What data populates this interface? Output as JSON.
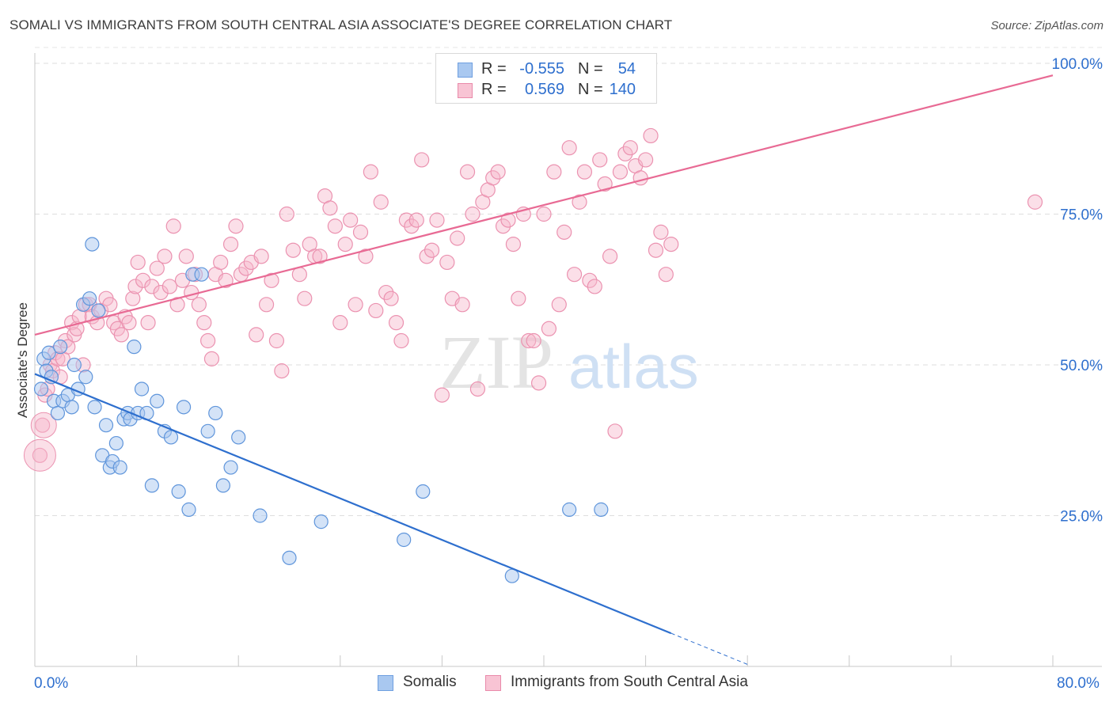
{
  "header": {
    "title": "SOMALI VS IMMIGRANTS FROM SOUTH CENTRAL ASIA ASSOCIATE'S DEGREE CORRELATION CHART",
    "source": "Source: ZipAtlas.com"
  },
  "watermark": {
    "zip": "ZIP",
    "atlas": "atlas"
  },
  "legend": {
    "rows": [
      {
        "r_label": "R =",
        "r_value": "-0.555",
        "n_label": "N =",
        "n_value": "54",
        "color": "#a9c8f0",
        "border": "#6e9fe0"
      },
      {
        "r_label": "R =",
        "r_value": "0.569",
        "n_label": "N =",
        "n_value": "140",
        "color": "#f8c4d4",
        "border": "#e98aaa"
      }
    ]
  },
  "bottom_legend": {
    "somali": "Somalis",
    "immigrants": "Immigrants from South Central Asia"
  },
  "axes": {
    "x_min_label": "0.0%",
    "x_max_label": "80.0%",
    "y_label": "Associate's Degree"
  },
  "colors": {
    "blue": "#2e6fce",
    "blue_fill": "#a9c8f0",
    "pink": "#e86a94",
    "pink_fill": "#f6b9cd"
  },
  "chart_data": {
    "type": "scatter",
    "title": "SOMALI VS IMMIGRANTS FROM SOUTH CENTRAL ASIA ASSOCIATE'S DEGREE CORRELATION CHART",
    "xlabel": "",
    "ylabel": "Associate's Degree",
    "xlim": [
      0,
      80
    ],
    "ylim": [
      0,
      103
    ],
    "y_ticks": [
      "25.0%",
      "50.0%",
      "75.0%",
      "100.0%"
    ],
    "y_tick_values": [
      25,
      50,
      75,
      100
    ],
    "grid": true,
    "series": [
      {
        "name": "Somalis",
        "color": "#2e6fce",
        "trend": {
          "x1": 0,
          "y1": 48.5,
          "x2": 50,
          "y2": 5.5,
          "dash_to_x": 56
        },
        "points": [
          [
            0.5,
            46
          ],
          [
            0.7,
            51
          ],
          [
            0.9,
            49
          ],
          [
            1.1,
            52
          ],
          [
            1.3,
            48
          ],
          [
            1.5,
            44
          ],
          [
            1.8,
            42
          ],
          [
            2.0,
            53
          ],
          [
            2.2,
            44
          ],
          [
            2.6,
            45
          ],
          [
            2.9,
            43
          ],
          [
            3.1,
            50
          ],
          [
            3.4,
            46
          ],
          [
            3.8,
            60
          ],
          [
            4.0,
            48
          ],
          [
            4.3,
            61
          ],
          [
            4.5,
            70
          ],
          [
            4.7,
            43
          ],
          [
            5.0,
            59
          ],
          [
            5.3,
            35
          ],
          [
            5.6,
            40
          ],
          [
            5.9,
            33
          ],
          [
            6.1,
            34
          ],
          [
            6.4,
            37
          ],
          [
            6.7,
            33
          ],
          [
            7.0,
            41
          ],
          [
            7.3,
            42
          ],
          [
            7.5,
            41
          ],
          [
            7.8,
            53
          ],
          [
            8.1,
            42
          ],
          [
            8.4,
            46
          ],
          [
            8.8,
            42
          ],
          [
            9.2,
            30
          ],
          [
            9.6,
            44
          ],
          [
            10.2,
            39
          ],
          [
            10.7,
            38
          ],
          [
            11.3,
            29
          ],
          [
            11.7,
            43
          ],
          [
            12.1,
            26
          ],
          [
            12.4,
            65
          ],
          [
            13.1,
            65
          ],
          [
            13.6,
            39
          ],
          [
            14.2,
            42
          ],
          [
            14.8,
            30
          ],
          [
            15.4,
            33
          ],
          [
            16.0,
            38
          ],
          [
            17.7,
            25
          ],
          [
            20.0,
            18
          ],
          [
            22.5,
            24
          ],
          [
            29.0,
            21
          ],
          [
            30.5,
            29
          ],
          [
            42.0,
            26
          ],
          [
            37.5,
            15
          ],
          [
            44.5,
            26
          ]
        ]
      },
      {
        "name": "Immigrants from South Central Asia",
        "color": "#e86a94",
        "trend": {
          "x1": 0,
          "y1": 55,
          "x2": 80,
          "y2": 98
        },
        "points": [
          [
            0.4,
            35
          ],
          [
            0.6,
            40
          ],
          [
            0.8,
            45
          ],
          [
            1.0,
            46
          ],
          [
            1.2,
            50
          ],
          [
            1.4,
            49
          ],
          [
            1.6,
            52
          ],
          [
            1.8,
            51
          ],
          [
            2.0,
            48
          ],
          [
            2.2,
            51
          ],
          [
            2.4,
            54
          ],
          [
            2.6,
            53
          ],
          [
            2.9,
            57
          ],
          [
            3.1,
            55
          ],
          [
            3.3,
            56
          ],
          [
            3.5,
            58
          ],
          [
            3.8,
            50
          ],
          [
            4.0,
            60
          ],
          [
            4.3,
            60
          ],
          [
            4.5,
            58
          ],
          [
            4.9,
            57
          ],
          [
            5.2,
            59
          ],
          [
            5.6,
            61
          ],
          [
            5.9,
            60
          ],
          [
            6.2,
            57
          ],
          [
            6.5,
            56
          ],
          [
            6.8,
            55
          ],
          [
            7.1,
            58
          ],
          [
            7.4,
            57
          ],
          [
            7.7,
            61
          ],
          [
            7.9,
            63
          ],
          [
            8.1,
            67
          ],
          [
            8.5,
            64
          ],
          [
            8.9,
            57
          ],
          [
            9.2,
            63
          ],
          [
            9.6,
            66
          ],
          [
            9.9,
            62
          ],
          [
            10.2,
            68
          ],
          [
            10.6,
            63
          ],
          [
            10.9,
            73
          ],
          [
            11.2,
            60
          ],
          [
            11.6,
            64
          ],
          [
            11.9,
            68
          ],
          [
            12.3,
            62
          ],
          [
            12.6,
            65
          ],
          [
            12.9,
            60
          ],
          [
            13.3,
            57
          ],
          [
            13.6,
            54
          ],
          [
            13.9,
            51
          ],
          [
            14.2,
            65
          ],
          [
            14.6,
            67
          ],
          [
            15.0,
            64
          ],
          [
            15.4,
            70
          ],
          [
            15.8,
            73
          ],
          [
            16.2,
            65
          ],
          [
            16.6,
            66
          ],
          [
            17.0,
            67
          ],
          [
            17.4,
            55
          ],
          [
            17.8,
            68
          ],
          [
            18.2,
            60
          ],
          [
            18.6,
            64
          ],
          [
            19.0,
            54
          ],
          [
            19.4,
            49
          ],
          [
            19.8,
            75
          ],
          [
            20.3,
            69
          ],
          [
            20.8,
            65
          ],
          [
            21.2,
            61
          ],
          [
            21.6,
            70
          ],
          [
            22.0,
            68
          ],
          [
            22.4,
            68
          ],
          [
            22.8,
            78
          ],
          [
            23.2,
            76
          ],
          [
            23.6,
            73
          ],
          [
            24.0,
            57
          ],
          [
            24.4,
            70
          ],
          [
            24.8,
            74
          ],
          [
            25.2,
            60
          ],
          [
            25.6,
            72
          ],
          [
            26.0,
            68
          ],
          [
            26.4,
            82
          ],
          [
            26.8,
            59
          ],
          [
            27.2,
            77
          ],
          [
            27.6,
            62
          ],
          [
            28.0,
            61
          ],
          [
            28.4,
            57
          ],
          [
            28.8,
            54
          ],
          [
            29.2,
            74
          ],
          [
            29.6,
            73
          ],
          [
            30.0,
            74
          ],
          [
            30.4,
            84
          ],
          [
            30.8,
            68
          ],
          [
            31.2,
            69
          ],
          [
            31.6,
            74
          ],
          [
            32.0,
            45
          ],
          [
            32.4,
            67
          ],
          [
            32.8,
            61
          ],
          [
            33.2,
            71
          ],
          [
            33.6,
            60
          ],
          [
            34.0,
            82
          ],
          [
            34.4,
            75
          ],
          [
            34.8,
            46
          ],
          [
            35.2,
            77
          ],
          [
            35.6,
            79
          ],
          [
            36.0,
            81
          ],
          [
            36.4,
            82
          ],
          [
            36.8,
            73
          ],
          [
            37.2,
            74
          ],
          [
            37.6,
            70
          ],
          [
            38.0,
            61
          ],
          [
            38.4,
            75
          ],
          [
            38.8,
            54
          ],
          [
            39.2,
            54
          ],
          [
            39.6,
            47
          ],
          [
            40.0,
            75
          ],
          [
            40.4,
            56
          ],
          [
            40.8,
            82
          ],
          [
            41.2,
            60
          ],
          [
            41.6,
            72
          ],
          [
            42.0,
            86
          ],
          [
            42.4,
            65
          ],
          [
            42.8,
            77
          ],
          [
            43.2,
            82
          ],
          [
            43.6,
            64
          ],
          [
            44.0,
            63
          ],
          [
            44.4,
            84
          ],
          [
            44.8,
            80
          ],
          [
            45.2,
            68
          ],
          [
            45.6,
            39
          ],
          [
            46.0,
            82
          ],
          [
            46.4,
            85
          ],
          [
            46.8,
            86
          ],
          [
            47.2,
            83
          ],
          [
            47.6,
            81
          ],
          [
            48.0,
            84
          ],
          [
            48.4,
            88
          ],
          [
            48.8,
            69
          ],
          [
            49.2,
            72
          ],
          [
            49.6,
            65
          ],
          [
            50.0,
            70
          ],
          [
            78.6,
            77
          ]
        ]
      }
    ]
  }
}
